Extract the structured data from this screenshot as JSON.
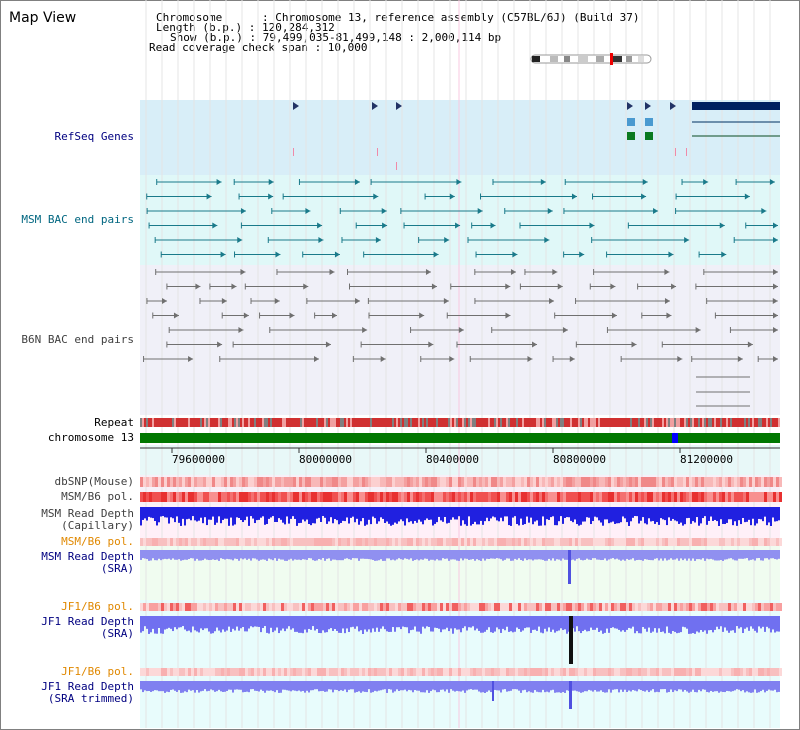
{
  "title": "Map View",
  "info": {
    "chromosome": "Chromosome      : Chromosome 13, reference assembly (C57BL/6J) (Build 37)",
    "length": "Length (b.p.) : 120,284,312",
    "show": "Show (b.p.) : 79,499,035-81,499,148 : 2,000,114 bp",
    "read_coverage": "Read coverage check span : 10,000"
  },
  "tracks": {
    "refseq": "RefSeq Genes",
    "msm_bac": "MSM BAC end pairs",
    "b6n_bac": "B6N BAC end pairs",
    "repeat": "Repeat",
    "chrom": "chromosome 13",
    "dbsnp": "dbSNP(Mouse)",
    "msm_b6_pol": "MSM/B6 pol.",
    "msm_rd_cap_1": "MSM Read Depth",
    "msm_rd_cap_2": "(Capillary)",
    "msm_b6_pol2": "MSM/B6 pol.",
    "msm_rd_sra_1": "MSM Read Depth",
    "msm_rd_sra_2": "(SRA)",
    "jf1_b6_pol": "JF1/B6 pol.",
    "jf1_rd_sra_1": "JF1 Read Depth",
    "jf1_rd_sra_2": "(SRA)",
    "jf1_b6_pol2": "JF1/B6 pol.",
    "jf1_rd_trim_1": "JF1 Read Depth",
    "jf1_rd_trim_2": "(SRA trimmed)"
  },
  "axis_ticks": [
    "79600000",
    "80000000",
    "80400000",
    "80800000",
    "81200000"
  ],
  "colors": {
    "navy": "#000080",
    "teal": "#006680",
    "orange": "#e08800",
    "chrom_green": "#007700",
    "sky": "#d8eef8"
  }
}
